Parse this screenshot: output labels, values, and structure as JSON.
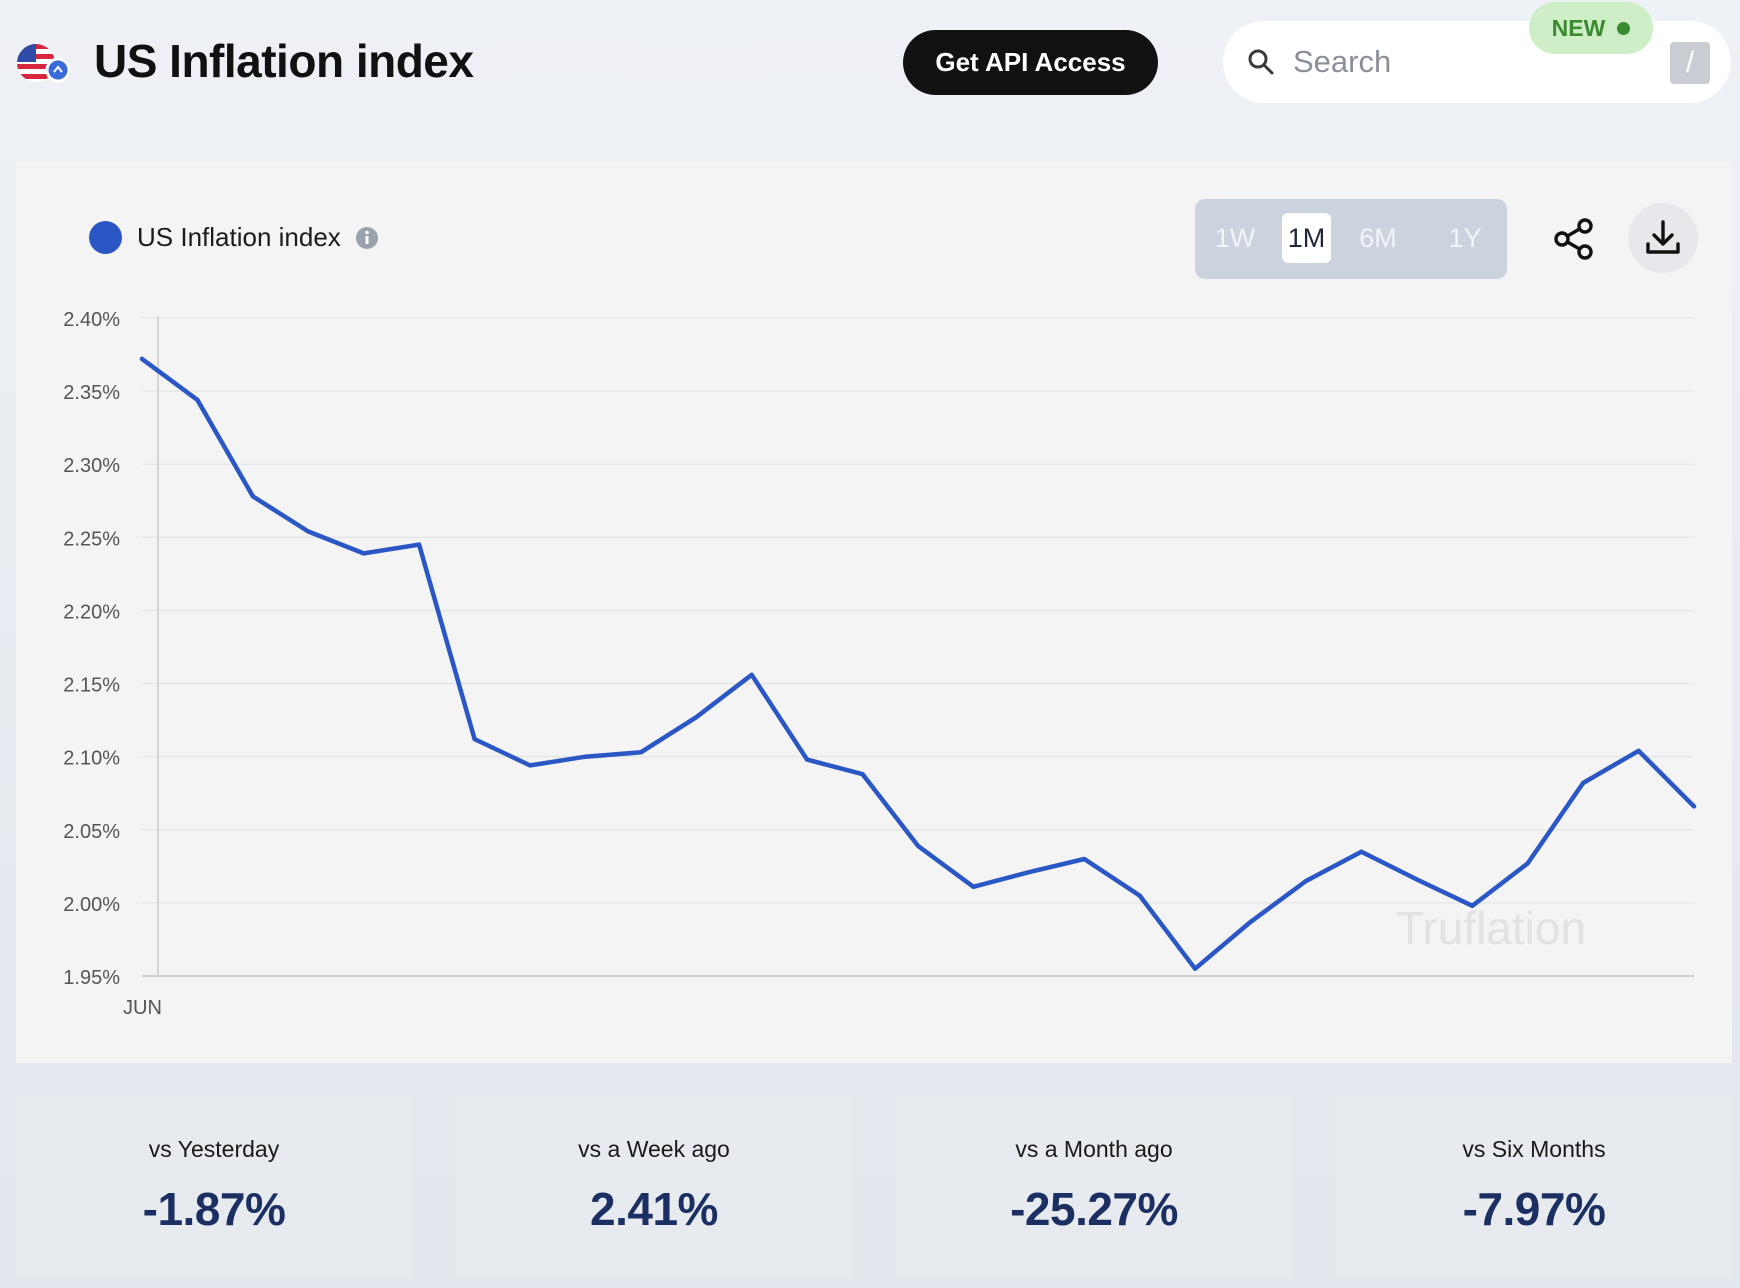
{
  "header": {
    "title": "US Inflation index",
    "api_button": "Get API Access",
    "search_placeholder": "Search",
    "shortcut_key": "/",
    "new_badge": "NEW"
  },
  "legend": {
    "label": "US Inflation index"
  },
  "range_buttons": [
    {
      "label": "1W",
      "active": false
    },
    {
      "label": "1M",
      "active": true
    },
    {
      "label": "6M",
      "active": false
    },
    {
      "label": "1Y",
      "active": false
    }
  ],
  "watermark": "Truflation",
  "colors": {
    "line": "#2a56c6",
    "value_text": "#1c2f62",
    "button_dark": "#111111",
    "new_badge_bg": "#cdeec6"
  },
  "chart_data": {
    "type": "line",
    "title": "",
    "xlabel": "",
    "ylabel": "",
    "x_tick_labels": [
      "JUN"
    ],
    "y_tick_labels": [
      "2.40%",
      "2.35%",
      "2.30%",
      "2.25%",
      "2.20%",
      "2.15%",
      "2.10%",
      "2.05%",
      "2.00%",
      "1.95%"
    ],
    "ylim": [
      1.95,
      2.4
    ],
    "grid": true,
    "legend_position": "top-left",
    "series": [
      {
        "name": "US Inflation index",
        "values": [
          2.372,
          2.344,
          2.278,
          2.254,
          2.239,
          2.245,
          2.112,
          2.094,
          2.1,
          2.103,
          2.127,
          2.156,
          2.098,
          2.088,
          2.039,
          2.011,
          2.021,
          2.03,
          2.005,
          1.955,
          1.987,
          2.015,
          2.035,
          2.016,
          1.998,
          2.027,
          2.082,
          2.104,
          2.066
        ]
      }
    ]
  },
  "stats": [
    {
      "label": "vs Yesterday",
      "value": "-1.87%"
    },
    {
      "label": "vs a Week ago",
      "value": "2.41%"
    },
    {
      "label": "vs a Month ago",
      "value": "-25.27%"
    },
    {
      "label": "vs Six Months",
      "value": "-7.97%"
    }
  ]
}
